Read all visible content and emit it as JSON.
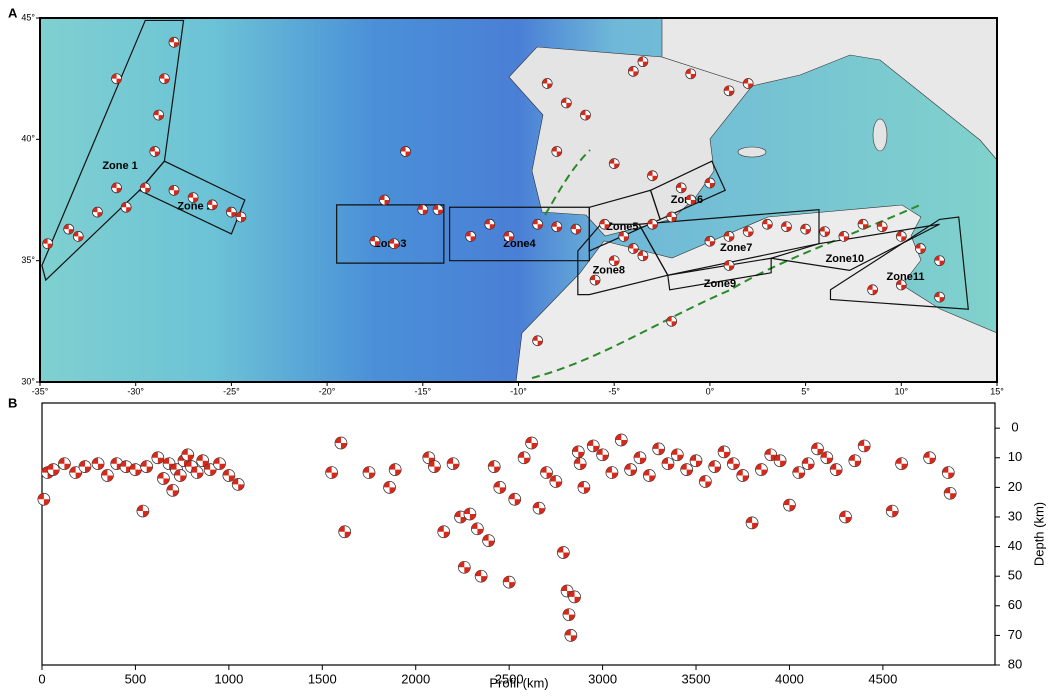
{
  "chart_data": [
    {
      "type": "map",
      "panel": "A",
      "xlim": [
        -35,
        15
      ],
      "ylim": [
        30,
        45
      ],
      "xticks": [
        {
          "value": -35,
          "label": "-35°"
        },
        {
          "value": -30,
          "label": "-30°"
        },
        {
          "value": -25,
          "label": "-25°"
        },
        {
          "value": -20,
          "label": "-20°"
        },
        {
          "value": -15,
          "label": "-15°"
        },
        {
          "value": -10,
          "label": "-10°"
        },
        {
          "value": -5,
          "label": "-5°"
        },
        {
          "value": 0,
          "label": "0°"
        },
        {
          "value": 5,
          "label": "5°"
        },
        {
          "value": 10,
          "label": "10°"
        },
        {
          "value": 15,
          "label": "15°"
        }
      ],
      "yticks": [
        {
          "value": 30,
          "label": "30°"
        },
        {
          "value": 35,
          "label": "35°"
        },
        {
          "value": 40,
          "label": "40°"
        },
        {
          "value": 45,
          "label": "45°"
        }
      ],
      "zones": [
        {
          "label": "Zone 1",
          "polygon": [
            [
              -34.9,
              34.8
            ],
            [
              -29.5,
              44.9
            ],
            [
              -27.5,
              44.9
            ],
            [
              -28.5,
              39.1
            ],
            [
              -29.8,
              37.9
            ],
            [
              -34.7,
              34.2
            ]
          ]
        },
        {
          "label": "Zone 2",
          "polygon": [
            [
              -29.8,
              37.9
            ],
            [
              -28.5,
              39.1
            ],
            [
              -24.3,
              37.5
            ],
            [
              -25,
              36.1
            ]
          ]
        },
        {
          "label": "Zone3",
          "polygon": [
            [
              -19.5,
              37.3
            ],
            [
              -13.9,
              37.3
            ],
            [
              -13.9,
              34.9
            ],
            [
              -19.5,
              34.9
            ]
          ]
        },
        {
          "label": "Zone4",
          "polygon": [
            [
              -13.6,
              37.2
            ],
            [
              -6.3,
              37.2
            ],
            [
              -6.3,
              35
            ],
            [
              -13.6,
              35
            ]
          ]
        },
        {
          "label": "Zone5",
          "polygon": [
            [
              -6.3,
              37.2
            ],
            [
              -3.1,
              37.9
            ],
            [
              -2.6,
              36.7
            ],
            [
              -6.3,
              35.4
            ]
          ]
        },
        {
          "label": "Zone6",
          "polygon": [
            [
              -3.1,
              37.9
            ],
            [
              0.1,
              39.1
            ],
            [
              0.8,
              37.9
            ],
            [
              -2.6,
              36.7
            ]
          ]
        },
        {
          "label": "Zone7",
          "polygon": [
            [
              -3.7,
              36.5
            ],
            [
              5.7,
              37.1
            ],
            [
              5.7,
              35.7
            ],
            [
              -2.2,
              34.4
            ]
          ]
        },
        {
          "label": "Zone8",
          "polygon": [
            [
              -6.9,
              35.4
            ],
            [
              -5.7,
              36.5
            ],
            [
              -3.7,
              36.5
            ],
            [
              -2.2,
              34.4
            ],
            [
              -6.3,
              33.6
            ],
            [
              -6.9,
              33.6
            ]
          ]
        },
        {
          "label": "Zone9",
          "polygon": [
            [
              -2.2,
              34.4
            ],
            [
              3.2,
              35.1
            ],
            [
              3.2,
              34.5
            ],
            [
              -2.1,
              33.8
            ]
          ]
        },
        {
          "label": "Zone10",
          "polygon": [
            [
              3.2,
              35.1
            ],
            [
              5.7,
              35.7
            ],
            [
              12,
              36.5
            ],
            [
              7.3,
              34.6
            ]
          ]
        },
        {
          "label": "Zone11",
          "polygon": [
            [
              6.3,
              33.8
            ],
            [
              12,
              36.7
            ],
            [
              13,
              36.8
            ],
            [
              13.5,
              33
            ],
            [
              6.3,
              33.4
            ]
          ]
        }
      ],
      "lon": [
        -33,
        -32,
        -31,
        -29,
        -28.8,
        -28.5,
        -28,
        -29.5,
        -30.5,
        -28,
        -27,
        -26,
        -25,
        -24.5,
        -34.6,
        -33.5,
        -31,
        -17,
        -16.5,
        -15,
        -14.2,
        -17.5,
        -15.9,
        -12.5,
        -11.5,
        -10.5,
        -9,
        -8,
        -7,
        -5.5,
        -4.5,
        -4,
        -3.5,
        -5,
        -6,
        -3,
        -2,
        -1,
        0,
        -1.5,
        -3,
        -5,
        -8,
        -7.5,
        -4,
        -1,
        1,
        2,
        -8.5,
        0,
        1,
        2,
        3,
        4,
        5,
        6,
        7,
        8,
        9,
        10,
        11,
        12,
        10,
        8.5,
        12,
        -9,
        -2,
        1,
        -6.5,
        -3.5
      ],
      "lat": [
        36,
        37,
        38,
        39.5,
        41,
        42.5,
        44,
        38,
        37.2,
        37.9,
        37.6,
        37.3,
        37,
        36.8,
        35.7,
        36.3,
        42.5,
        37.5,
        35.7,
        37.1,
        37.1,
        35.8,
        39.5,
        36,
        36.5,
        36,
        36.5,
        36.4,
        36.3,
        36.5,
        36,
        35.5,
        35.2,
        35,
        34.2,
        36.5,
        36.8,
        37.5,
        38.2,
        38,
        38.5,
        39,
        39.5,
        41.5,
        42.8,
        42.7,
        42,
        42.3,
        42.3,
        35.8,
        36,
        36.2,
        36.5,
        36.4,
        36.3,
        36.2,
        36,
        36.5,
        36.4,
        36,
        35.5,
        35,
        34,
        33.8,
        33.5,
        31.7,
        32.5,
        34.8,
        41,
        43.2
      ]
    },
    {
      "type": "scatter",
      "panel": "B",
      "xlabel": "Profil (km)",
      "ylabel": "Depth (km)",
      "xlim": [
        0,
        5100
      ],
      "ylim": [
        -8.5,
        80
      ],
      "y_inverted": true,
      "xticks": [
        0,
        500,
        1000,
        1500,
        2000,
        2500,
        3000,
        3500,
        4000,
        4500
      ],
      "yticks": [
        0,
        10,
        20,
        30,
        40,
        50,
        60,
        70,
        80
      ],
      "x": [
        10,
        30,
        60,
        120,
        180,
        230,
        300,
        350,
        400,
        450,
        500,
        540,
        560,
        620,
        650,
        680,
        700,
        720,
        740,
        760,
        780,
        800,
        830,
        860,
        900,
        950,
        1000,
        1050,
        1550,
        1600,
        1620,
        1750,
        1860,
        1890,
        2070,
        2100,
        2150,
        2200,
        2240,
        2260,
        2290,
        2330,
        2350,
        2390,
        2420,
        2450,
        2500,
        2530,
        2580,
        2620,
        2660,
        2700,
        2750,
        2790,
        2810,
        2820,
        2830,
        2850,
        2870,
        2880,
        2900,
        2950,
        3000,
        3050,
        3100,
        3150,
        3200,
        3250,
        3300,
        3350,
        3400,
        3450,
        3500,
        3550,
        3600,
        3650,
        3700,
        3750,
        3800,
        3850,
        3900,
        3950,
        4000,
        4050,
        4100,
        4150,
        4200,
        4250,
        4300,
        4350,
        4400,
        4550,
        4600,
        4750,
        4850,
        4860
      ],
      "values": [
        24,
        15,
        14,
        12,
        15,
        13,
        12,
        16,
        12,
        13,
        14,
        28,
        13,
        10,
        17,
        12,
        21,
        14,
        16,
        11,
        9,
        13,
        15,
        11,
        14,
        12,
        16,
        19,
        15,
        5,
        35,
        15,
        20,
        14,
        10,
        13,
        35,
        12,
        30,
        47,
        29,
        34,
        50,
        38,
        13,
        20,
        52,
        24,
        10,
        5,
        27,
        15,
        18,
        42,
        55,
        63,
        70,
        57,
        8,
        12,
        20,
        6,
        9,
        15,
        4,
        14,
        10,
        16,
        7,
        12,
        9,
        14,
        11,
        18,
        13,
        8,
        12,
        16,
        32,
        14,
        9,
        11,
        26,
        15,
        12,
        7,
        10,
        14,
        30,
        11,
        6,
        28,
        12,
        10,
        15,
        22
      ]
    }
  ]
}
